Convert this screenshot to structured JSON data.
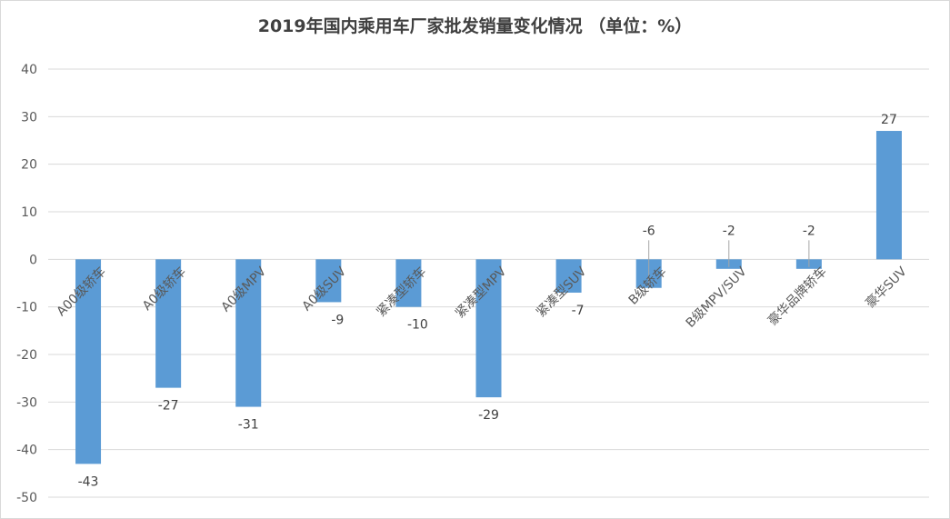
{
  "chart_data": {
    "type": "bar",
    "title": "2019年国内乘用车厂家批发销量变化情况 （单位：%）",
    "categories": [
      "A00级轿车",
      "A0级轿车",
      "A0级MPV",
      "A0级SUV",
      "紧凑型轿车",
      "紧凑型MPV",
      "紧凑型SUV",
      "B级轿车",
      "B级MPV/SUV",
      "豪华品牌轿车",
      "豪华SUV"
    ],
    "values": [
      -43,
      -27,
      -31,
      -9,
      -10,
      -29,
      -7,
      -6,
      -2,
      -2,
      27
    ],
    "ylim": [
      -50,
      40
    ],
    "yticks": [
      40,
      30,
      20,
      10,
      0,
      -10,
      -20,
      -30,
      -40,
      -50
    ],
    "xlabel": "",
    "ylabel": "",
    "grid": true,
    "legend": "none",
    "bar_color": "#5b9bd5",
    "grid_color": "#d9d9d9"
  }
}
